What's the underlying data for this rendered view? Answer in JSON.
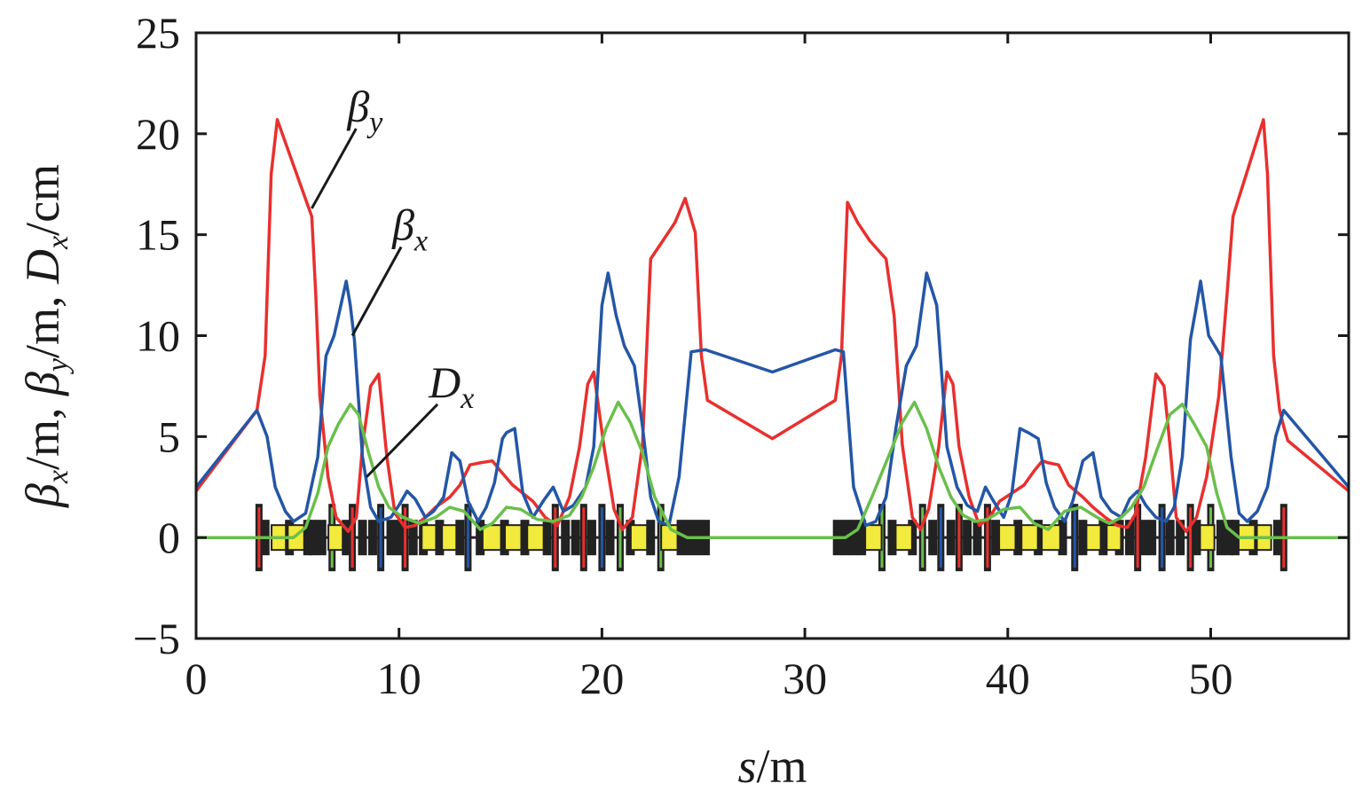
{
  "chart_data": {
    "type": "line",
    "xlabel": {
      "var": "s",
      "unit": "/m"
    },
    "ylabel": [
      {
        "sym": "β",
        "sub": "x",
        "unit": "/m,"
      },
      {
        "sym": "β",
        "sub": "y",
        "unit": "/m,"
      },
      {
        "sym": "D",
        "sub": "x",
        "unit": "/cm"
      }
    ],
    "xlim": [
      0,
      56.8
    ],
    "ylim": [
      -5,
      25
    ],
    "xticks": [
      0,
      10,
      20,
      30,
      40,
      50
    ],
    "yticks": [
      -5,
      0,
      5,
      10,
      15,
      20,
      25
    ],
    "xtick_labels": [
      "0",
      "10",
      "20",
      "30",
      "40",
      "50"
    ],
    "ytick_labels": [
      "−5",
      "0",
      "5",
      "10",
      "15",
      "20",
      "25"
    ],
    "grid": false,
    "colors": {
      "beta_x": "#2456a6",
      "beta_y": "#e8302e",
      "D_x": "#6abf4b",
      "magnet_black": "#222222",
      "magnet_yellow": "#f2ea3c",
      "magnet_red": "#e8302e",
      "magnet_green": "#6abf4b",
      "magnet_blue": "#2456a6"
    },
    "annotations": [
      {
        "sym": "β",
        "sub": "y",
        "series": "beta_y",
        "at": [
          5.7,
          16.3
        ]
      },
      {
        "sym": "β",
        "sub": "x",
        "series": "beta_x",
        "at": [
          7.7,
          10.0
        ]
      },
      {
        "sym": "D",
        "sub": "x",
        "series": "D_x",
        "at": [
          8.4,
          3.0
        ]
      }
    ],
    "series": [
      {
        "id": "beta_y",
        "color": "#e8302e",
        "x": [
          0,
          3.0,
          3.4,
          3.7,
          4.0,
          5.7,
          5.9,
          6.1,
          6.5,
          6.9,
          7.5,
          7.9,
          8.2,
          8.6,
          9.0,
          9.4,
          9.8,
          10.3,
          10.8,
          11.3,
          11.8,
          12.5,
          13.0,
          13.5,
          14.0,
          14.6,
          15.0,
          15.6,
          16.1,
          16.6,
          17.2,
          17.8,
          18.4,
          18.9,
          19.3,
          19.6,
          20.1,
          20.6,
          21.0,
          21.5,
          22.0,
          22.4,
          23.0,
          23.6,
          24.1,
          24.6,
          24.9,
          25.2,
          28.4,
          31.5,
          31.8,
          32.1,
          32.6,
          33.2,
          34.0,
          34.4,
          34.8,
          35.3,
          35.7,
          36.1,
          36.6,
          37.0,
          37.3,
          37.6,
          38.1,
          38.6,
          39.1,
          39.6,
          40.2,
          40.8,
          41.3,
          41.7,
          42.0,
          42.5,
          43.0,
          43.7,
          44.2,
          44.8,
          45.4,
          45.9,
          46.3,
          46.8,
          47.3,
          47.7,
          48.0,
          48.3,
          48.8,
          49.3,
          49.8,
          50.4,
          50.8,
          51.1,
          52.6,
          52.8,
          53.1,
          53.4,
          53.6,
          53.8,
          56.8
        ],
        "y": [
          2.3,
          6.3,
          9.0,
          18.0,
          20.7,
          15.9,
          12.0,
          7.0,
          3.0,
          1.0,
          0.3,
          1.0,
          4.5,
          7.5,
          8.1,
          4.0,
          1.2,
          0.5,
          0.6,
          1.0,
          1.5,
          2.0,
          2.6,
          3.6,
          3.7,
          3.8,
          3.3,
          2.6,
          2.2,
          1.8,
          1.0,
          0.6,
          2.0,
          4.5,
          7.6,
          8.2,
          4.5,
          1.4,
          0.4,
          1.0,
          4.6,
          13.8,
          14.7,
          15.6,
          16.8,
          15.1,
          9.0,
          6.8,
          4.9,
          6.8,
          9.0,
          16.6,
          15.6,
          14.7,
          13.8,
          11.0,
          4.6,
          1.0,
          0.4,
          1.4,
          4.5,
          8.2,
          7.6,
          4.5,
          2.0,
          0.6,
          1.0,
          1.8,
          2.2,
          2.6,
          3.3,
          3.8,
          3.7,
          3.6,
          2.6,
          2.0,
          1.5,
          1.0,
          0.6,
          0.5,
          1.2,
          4.0,
          8.1,
          7.5,
          4.5,
          1.0,
          0.3,
          1.0,
          3.0,
          7.0,
          12.0,
          15.9,
          20.7,
          18.0,
          9.0,
          6.3,
          5.5,
          4.8,
          2.3
        ]
      },
      {
        "id": "beta_x",
        "color": "#2456a6",
        "x": [
          0,
          3.0,
          3.5,
          3.9,
          4.4,
          4.8,
          5.4,
          6.0,
          6.4,
          6.8,
          7.4,
          7.6,
          7.8,
          8.2,
          8.6,
          9.0,
          9.6,
          10.0,
          10.4,
          10.8,
          11.3,
          11.7,
          12.2,
          12.6,
          13.0,
          13.4,
          13.9,
          14.3,
          14.7,
          15.1,
          15.3,
          15.7,
          16.1,
          16.6,
          17.1,
          17.6,
          18.1,
          18.6,
          19.2,
          19.6,
          20.0,
          20.3,
          20.7,
          21.1,
          21.6,
          22.0,
          22.4,
          22.8,
          23.3,
          23.8,
          24.4,
          25.1,
          28.4,
          31.5,
          31.9,
          32.4,
          33.0,
          33.5,
          34.0,
          34.5,
          35.0,
          35.5,
          36.0,
          36.5,
          37.0,
          37.5,
          38.0,
          38.5,
          38.9,
          39.3,
          39.8,
          40.2,
          40.6,
          41.0,
          41.5,
          41.9,
          42.3,
          42.8,
          43.2,
          43.7,
          44.2,
          44.6,
          45.1,
          45.6,
          46.0,
          46.4,
          46.8,
          47.3,
          47.8,
          48.2,
          48.6,
          49.0,
          49.3,
          49.5,
          49.9,
          50.5,
          51.0,
          51.4,
          51.8,
          52.3,
          52.8,
          53.2,
          53.6,
          56.8
        ],
        "y": [
          2.5,
          6.3,
          5.0,
          2.5,
          1.3,
          0.8,
          1.2,
          4.0,
          9.0,
          10.0,
          12.7,
          11.5,
          9.8,
          4.0,
          1.5,
          0.8,
          1.0,
          1.6,
          2.3,
          1.9,
          1.0,
          1.3,
          2.0,
          4.2,
          3.8,
          1.8,
          0.8,
          1.5,
          2.7,
          4.9,
          5.2,
          5.4,
          2.2,
          1.0,
          1.8,
          2.5,
          1.3,
          1.6,
          2.5,
          4.5,
          11.5,
          13.1,
          11.0,
          9.5,
          8.5,
          5.5,
          2.0,
          0.8,
          0.6,
          3.0,
          9.2,
          9.3,
          8.2,
          9.3,
          9.2,
          2.5,
          0.6,
          0.8,
          2.0,
          5.5,
          8.5,
          9.5,
          13.1,
          11.5,
          4.5,
          2.5,
          1.6,
          1.3,
          2.5,
          1.8,
          1.0,
          2.2,
          5.4,
          5.2,
          4.9,
          2.7,
          1.5,
          0.8,
          1.8,
          3.8,
          4.2,
          2.0,
          1.3,
          1.0,
          1.9,
          2.3,
          1.6,
          1.0,
          0.8,
          1.5,
          4.0,
          9.8,
          11.5,
          12.7,
          10.0,
          9.0,
          4.0,
          1.2,
          0.8,
          1.3,
          2.5,
          5.0,
          6.3,
          2.5
        ]
      },
      {
        "id": "D_x",
        "color": "#6abf4b",
        "x": [
          0,
          4.8,
          5.4,
          6.0,
          6.5,
          7.0,
          7.6,
          8.0,
          8.5,
          9.0,
          9.5,
          10.2,
          11.0,
          11.8,
          12.5,
          13.2,
          14.0,
          14.6,
          15.3,
          16.0,
          16.8,
          17.6,
          18.4,
          19.0,
          19.6,
          20.2,
          20.8,
          21.4,
          22.0,
          22.6,
          23.4,
          24.2,
          24.6,
          25.1,
          31.5,
          32.0,
          32.6,
          33.3,
          34.2,
          34.8,
          35.4,
          36.0,
          36.6,
          37.2,
          37.8,
          38.4,
          39.0,
          39.8,
          40.6,
          41.3,
          42.0,
          42.8,
          43.6,
          44.4,
          45.0,
          45.6,
          46.1,
          46.7,
          47.3,
          48.0,
          48.6,
          49.2,
          49.8,
          50.3,
          50.8,
          51.4,
          52.0,
          56.8
        ],
        "y": [
          0,
          0,
          0.5,
          2.2,
          4.5,
          5.6,
          6.6,
          6.1,
          4.2,
          2.5,
          1.5,
          1.0,
          0.7,
          1.0,
          1.5,
          1.3,
          0.4,
          0.7,
          1.5,
          1.4,
          0.9,
          0.8,
          1.1,
          2.0,
          3.5,
          5.4,
          6.7,
          5.7,
          4.2,
          2.0,
          0.4,
          0,
          0,
          0,
          0,
          0,
          0.4,
          2.0,
          4.2,
          5.7,
          6.7,
          5.4,
          3.5,
          2.0,
          1.1,
          0.8,
          0.9,
          1.4,
          1.5,
          0.7,
          0.4,
          1.3,
          1.5,
          1.0,
          0.7,
          1.0,
          1.5,
          2.5,
          4.2,
          6.1,
          6.6,
          5.6,
          4.5,
          2.2,
          0.5,
          0,
          0,
          0
        ]
      }
    ],
    "magnet_layout": {
      "sections": [
        {
          "s_start": 3.0,
          "s_end": 25.2
        },
        {
          "s_start": 31.5,
          "s_end": 53.7
        }
      ],
      "element_s": [
        3.1,
        3.4,
        4.2,
        4.6,
        5.0,
        5.5,
        5.8,
        6.2,
        6.7,
        7.0,
        7.4,
        7.7,
        8.2,
        8.7,
        9.1,
        9.6,
        10.0,
        10.3,
        10.7,
        11.2,
        11.6,
        12.0,
        12.6,
        13.0,
        13.4,
        14.0,
        14.6,
        15.2,
        15.7,
        16.2,
        16.8,
        17.3,
        17.7,
        18.2,
        18.7,
        19.1,
        19.5,
        20.0,
        20.4,
        20.9,
        21.4,
        21.9,
        22.4,
        22.9,
        23.4,
        23.9,
        24.3,
        24.7,
        25.1
      ],
      "element_colors": [
        "red",
        "black",
        "yellow",
        "black",
        "yellow",
        "black",
        "black",
        "black",
        "green",
        "yellow",
        "black",
        "red",
        "black",
        "black",
        "blue",
        "black",
        "black",
        "red",
        "black",
        "black",
        "yellow",
        "black",
        "yellow",
        "black",
        "blue",
        "black",
        "yellow",
        "black",
        "yellow",
        "black",
        "yellow",
        "black",
        "red",
        "black",
        "black",
        "red",
        "black",
        "blue",
        "black",
        "green",
        "black",
        "yellow",
        "black",
        "green",
        "yellow",
        "black",
        "black",
        "black",
        "black"
      ]
    }
  }
}
